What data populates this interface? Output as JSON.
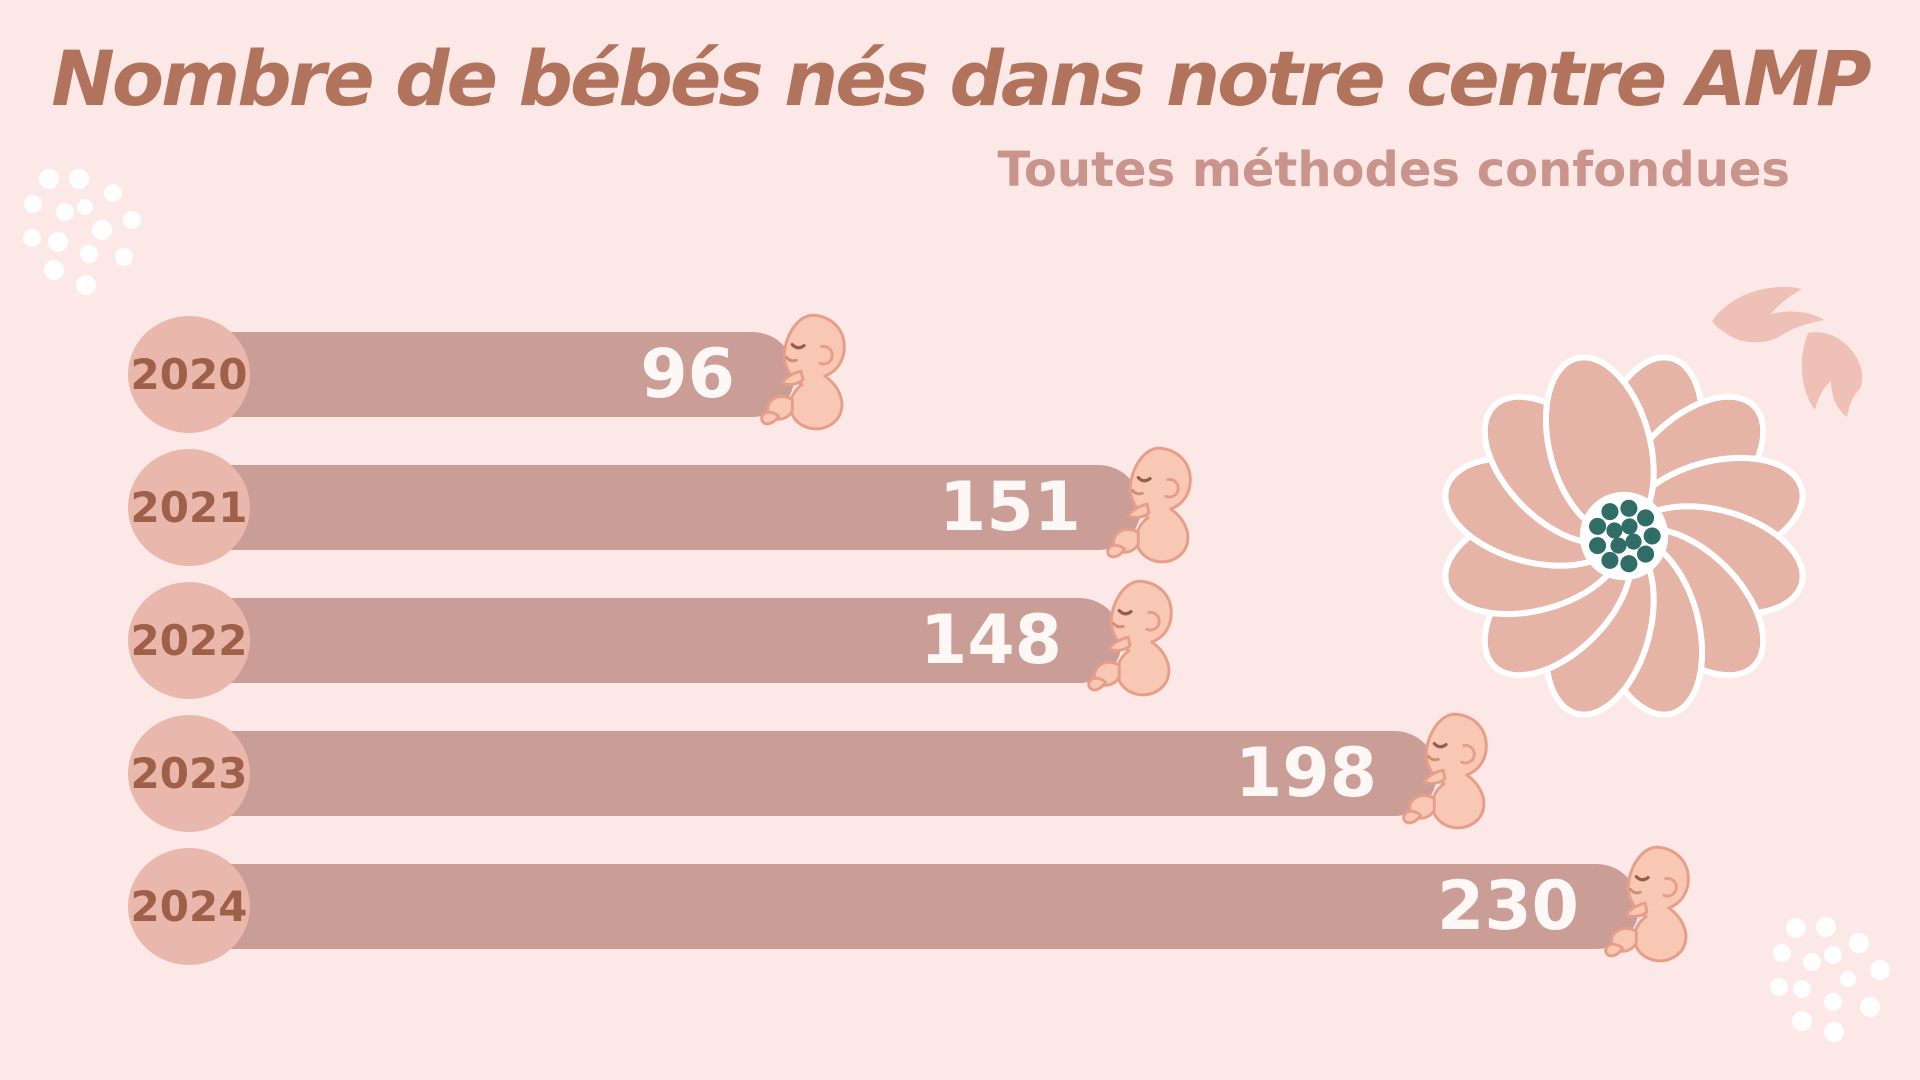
{
  "page": {
    "title": "Nombre de bébés nés dans notre centre AMP",
    "subtitle": "Toutes méthodes confondues"
  },
  "chart_data": {
    "type": "bar",
    "orientation": "horizontal",
    "title": "Nombre de bébés nés dans notre centre AMP",
    "subtitle": "Toutes méthodes confondues",
    "categories": [
      "2020",
      "2021",
      "2022",
      "2023",
      "2024"
    ],
    "values": [
      96,
      151,
      148,
      198,
      230
    ],
    "xlim": [
      0,
      240
    ],
    "grid": "off",
    "value_labels_shown": true,
    "bar_end_icon": "fetus-baby-icon",
    "category_badge_shape": "circle"
  },
  "colors": {
    "background": "#fce8e6",
    "title": "#b2735c",
    "subtitle": "#c9948c",
    "bar": "#cb9d97",
    "year_circle": "#e9b7ab",
    "year_text": "#9e6048",
    "value_text": "#fdf8f5",
    "baby_skin": "#f9c8b5",
    "baby_outline": "#e79e89",
    "flower_petal": "#e6b3a7",
    "flower_center_dots": "#2f6d66",
    "leaf": "#efc0b6",
    "deco_dots": "#ffffff"
  },
  "icons": {
    "baby": "fetus-baby-icon",
    "flower": "flower-illustration",
    "leaves": "leaves-illustration",
    "dots": "confetti-dots-decoration"
  }
}
